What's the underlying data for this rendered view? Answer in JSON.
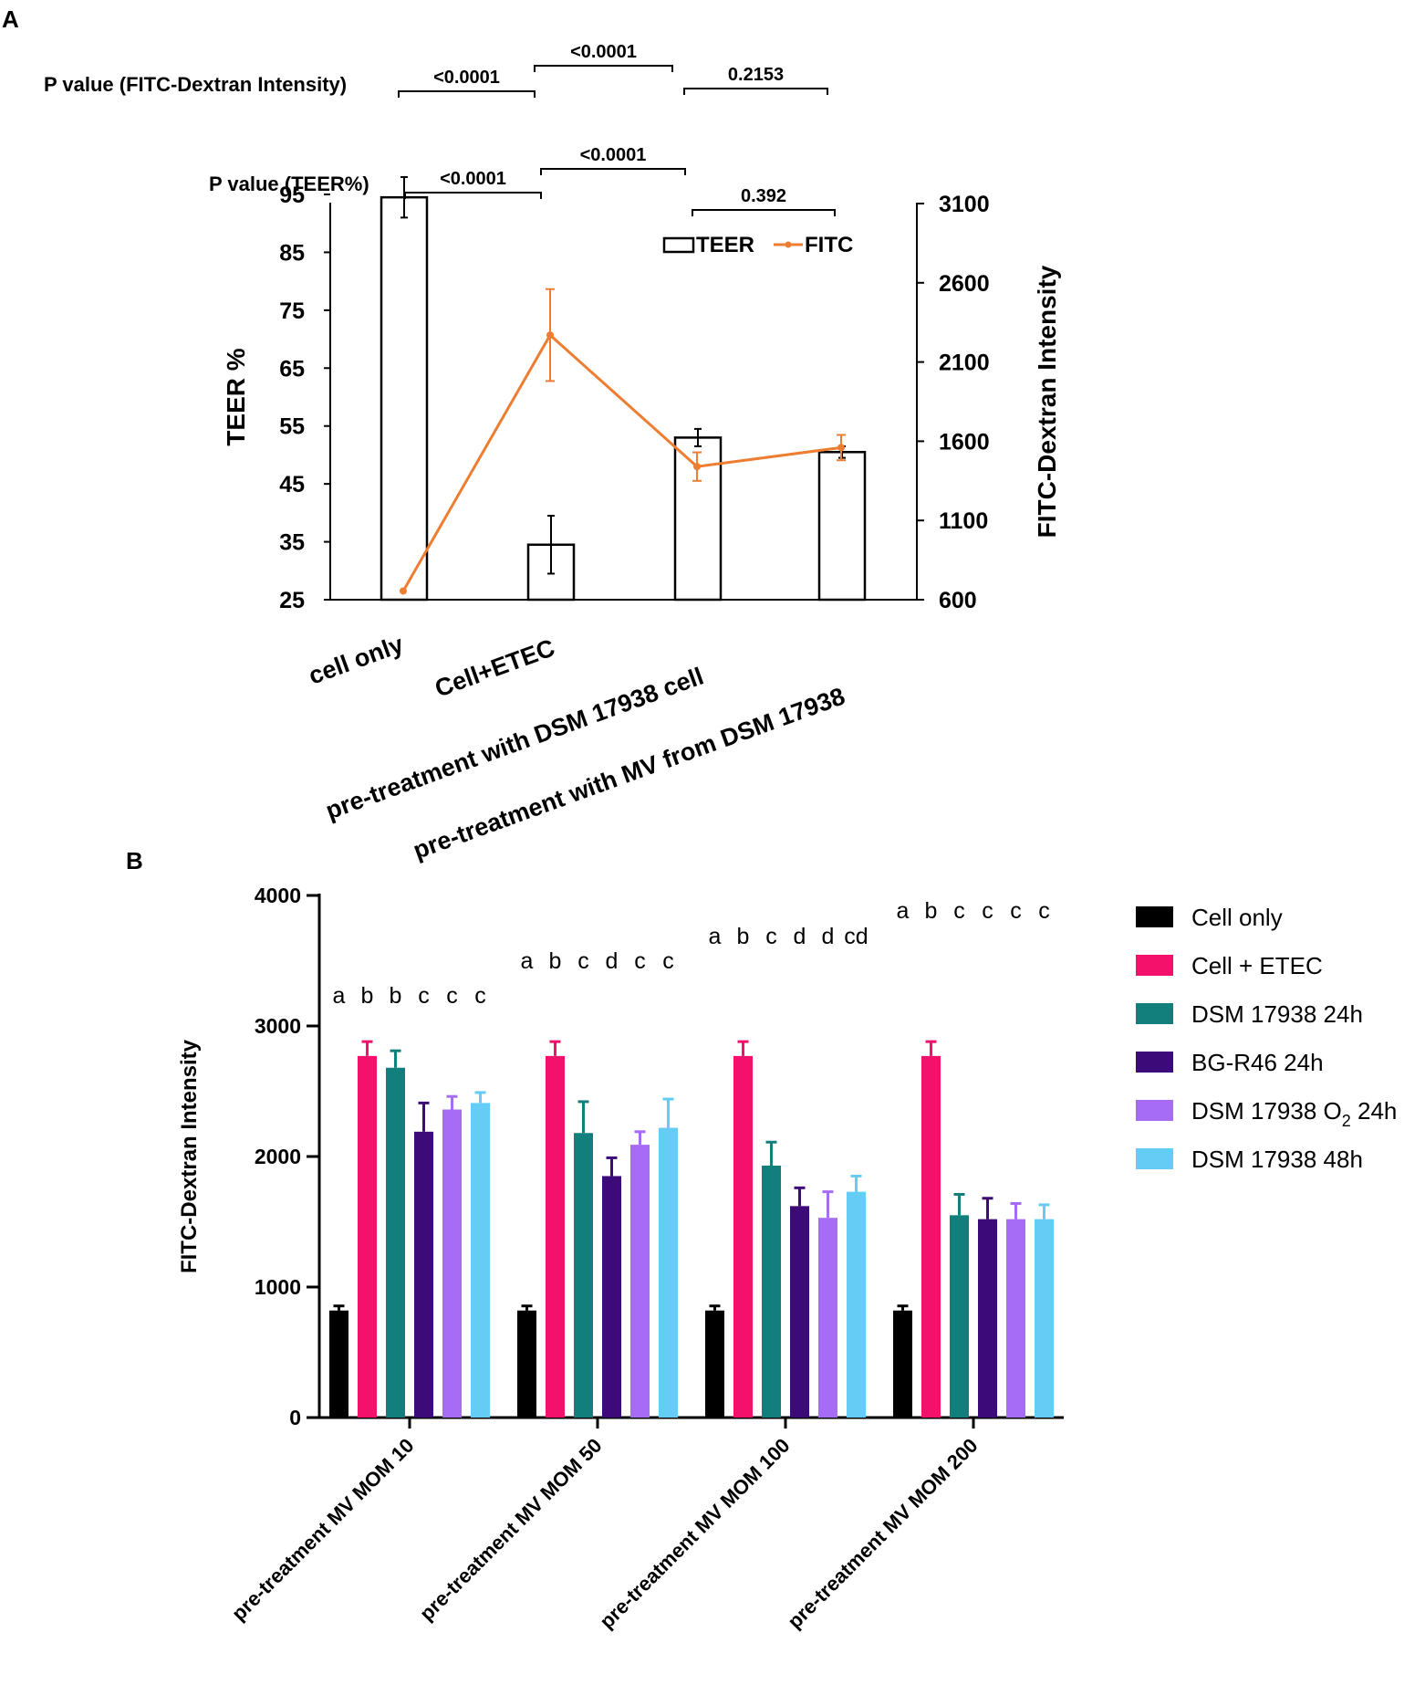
{
  "chart_data": [
    {
      "panel": "A",
      "type": "bar",
      "categories": [
        "cell only",
        "Cell+ETEC",
        "pre-treatment with DSM 17938 cell",
        "pre-treatment with MV from DSM 17938"
      ],
      "series": [
        {
          "name": "TEER",
          "kind": "bar",
          "axis": "left",
          "values": [
            94.5,
            34.5,
            53,
            50.5
          ],
          "errors": [
            3.5,
            5,
            1.5,
            1
          ],
          "color": "#ffffff",
          "stroke": "#000000"
        },
        {
          "name": "FITC",
          "kind": "line",
          "axis": "right",
          "values": [
            655,
            2270,
            1440,
            1560
          ],
          "errors": [
            0,
            290,
            90,
            80
          ],
          "color": "#ed7d31"
        }
      ],
      "ylabel": "TEER %",
      "ylim": [
        25,
        95
      ],
      "yticks": [
        "95",
        "85",
        "75",
        "65",
        "55",
        "45",
        "35",
        "25"
      ],
      "y2label": "FITC-Dextran Intensity",
      "y2lim": [
        600,
        3100
      ],
      "y2ticks": [
        "3100",
        "2600",
        "2100",
        "1600",
        "1100",
        "600"
      ],
      "legend": [
        "TEER",
        "FITC"
      ],
      "legend_position": "top-right",
      "annotations": {
        "fitc_label": "P value (FITC-Dextran Intensity)",
        "fitc_pvalues": [
          "<0.0001",
          "<0.0001",
          "0.2153"
        ],
        "teer_label": "P value (TEER%)",
        "teer_pvalues": [
          "<0.0001",
          "<0.0001",
          "0.392"
        ]
      }
    },
    {
      "panel": "B",
      "type": "bar",
      "categories": [
        "pre-treatment MV MOM 10",
        "pre-treatment MV MOM 50",
        "pre-treatment MV MOM 100",
        "pre-treatment MV MOM 200"
      ],
      "series": [
        {
          "name": "Cell only",
          "color": "#000000",
          "values": [
            820,
            820,
            820,
            820
          ],
          "errors": [
            35,
            35,
            35,
            35
          ]
        },
        {
          "name": "Cell + ETEC",
          "color": "#f4116b",
          "values": [
            2770,
            2770,
            2770,
            2770
          ],
          "errors": [
            110,
            110,
            110,
            110
          ]
        },
        {
          "name": "DSM 17938 24h",
          "color": "#137f7c",
          "values": [
            2680,
            2180,
            1930,
            1550
          ],
          "errors": [
            130,
            240,
            180,
            160
          ]
        },
        {
          "name": "BG-R46 24h",
          "color": "#3d0a7a",
          "values": [
            2190,
            1850,
            1620,
            1520
          ],
          "errors": [
            220,
            140,
            140,
            160
          ]
        },
        {
          "name": "DSM 17938 O2 24h",
          "legend_main": "DSM 17938 O",
          "legend_sub": "2",
          "legend_tail": " 24h",
          "color": "#a66cf4",
          "values": [
            2360,
            2090,
            1530,
            1520
          ],
          "errors": [
            100,
            100,
            200,
            120
          ]
        },
        {
          "name": "DSM 17938 48h",
          "color": "#65cdf5",
          "values": [
            2410,
            2220,
            1730,
            1520
          ],
          "errors": [
            80,
            220,
            120,
            110
          ]
        }
      ],
      "ylabel": "FITC-Dextran Intensity",
      "ylim": [
        0,
        4000
      ],
      "yticks": [
        "4000",
        "3000",
        "2000",
        "1000",
        "0"
      ],
      "legend_position": "right",
      "significance": [
        [
          "a",
          "b",
          "b",
          "c",
          "c",
          "c"
        ],
        [
          "a",
          "b",
          "c",
          "d",
          "c",
          "c"
        ],
        [
          "a",
          "b",
          "c",
          "d",
          "d",
          "cd"
        ],
        [
          "a",
          "b",
          "c",
          "c",
          "c",
          "c"
        ]
      ]
    }
  ]
}
